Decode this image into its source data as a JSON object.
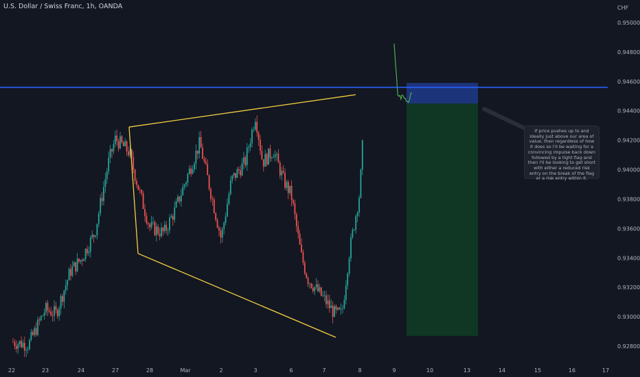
{
  "chart_data": {
    "type": "candlestick",
    "title": "U.S. Dollar / Swiss Franc, 1h, OANDA",
    "currency": "CHF",
    "x_tick_labels": [
      "22",
      "23",
      "24",
      "27",
      "28",
      "Mar",
      "2",
      "3",
      "6",
      "7",
      "8",
      "9",
      "10",
      "13",
      "14",
      "15",
      "16",
      "17"
    ],
    "y_tick_labels": [
      "0.95000",
      "0.94800",
      "0.94600",
      "0.94400",
      "0.94200",
      "0.94000",
      "0.93800",
      "0.93600",
      "0.93400",
      "0.93200",
      "0.93000",
      "0.92800"
    ],
    "ylim": [
      0.9266,
      0.9532
    ],
    "close_path": [
      [
        "22",
        0.9283
      ],
      [
        "22.5",
        0.9281
      ],
      [
        "23",
        0.9305
      ],
      [
        "23.3",
        0.9302
      ],
      [
        "23.7",
        0.9331
      ],
      [
        "24",
        0.9339
      ],
      [
        "24.4",
        0.9357
      ],
      [
        "24.8",
        0.9405
      ],
      [
        "27",
        0.9421
      ],
      [
        "27.4",
        0.9412
      ],
      [
        "27.7",
        0.9385
      ],
      [
        "28",
        0.9361
      ],
      [
        "28.4",
        0.9357
      ],
      [
        "28.7",
        0.9372
      ],
      [
        "Mar",
        0.9392
      ],
      [
        "Mar.4",
        0.9418
      ],
      [
        "Mar.8",
        0.9375
      ],
      [
        "2",
        0.9353
      ],
      [
        "2.3",
        0.9393
      ],
      [
        "2.7",
        0.9405
      ],
      [
        "3",
        0.9437
      ],
      [
        "3.2",
        0.9405
      ],
      [
        "3.5",
        0.9413
      ],
      [
        "3.8",
        0.9392
      ],
      [
        "6",
        0.9383
      ],
      [
        "6.3",
        0.9342
      ],
      [
        "6.5",
        0.9326
      ],
      [
        "7",
        0.9312
      ],
      [
        "7.3",
        0.9302
      ],
      [
        "7.5",
        0.9302
      ],
      [
        "7.7",
        0.9343
      ],
      [
        "8",
        0.9385
      ],
      [
        "8.1",
        0.9425
      ]
    ],
    "projection_path": [
      [
        0.9485,
        "9"
      ],
      [
        0.9451,
        "9.1"
      ],
      [
        0.9447,
        "9.4"
      ],
      [
        0.9452,
        "9.5"
      ]
    ],
    "horizontal_line": {
      "price": 0.9456,
      "color": "#2962ff"
    },
    "wedge_upper": [
      [
        0.9429,
        "27"
      ],
      [
        0.9451,
        "8"
      ]
    ],
    "wedge_lower": [
      [
        0.9343,
        "28"
      ],
      [
        0.9286,
        "7"
      ]
    ],
    "position_box": {
      "entry": 0.9445,
      "stop": 0.9459,
      "target": 0.9287
    },
    "annotation_text": "If price pushes up to and ideally just above our area of value, then regardless of how it does so I'll be waiting for a convincing impulse back down followed by a tight flag and then I'll be looking to get short with either a reduced risk entry on the break of the flag or a risk entry within it.",
    "colors": {
      "up": "#26a69a",
      "down": "#ef5350",
      "wedge": "#f5d142",
      "hline": "#2962ff",
      "stop_zone": "#1f3a8a",
      "target_zone": "#0f3b25",
      "projection": "#4caf50",
      "background": "#131722"
    },
    "grid": false
  }
}
